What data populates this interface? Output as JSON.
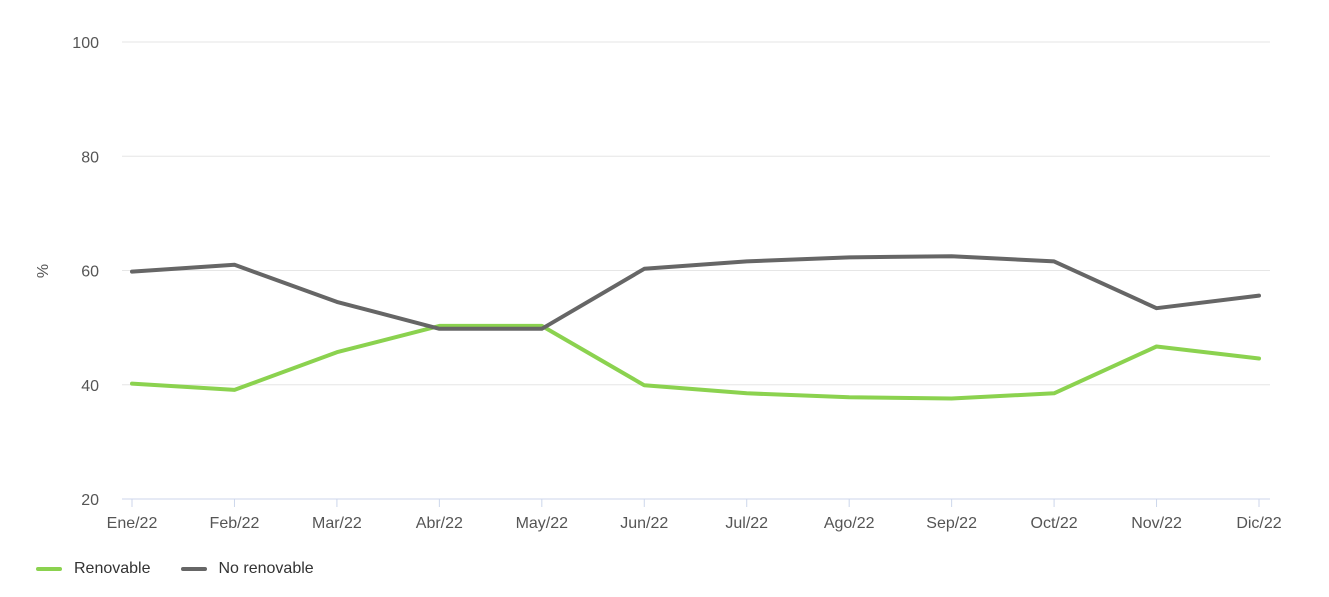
{
  "chart_data": {
    "type": "line",
    "categories": [
      "Ene/22",
      "Feb/22",
      "Mar/22",
      "Abr/22",
      "May/22",
      "Jun/22",
      "Jul/22",
      "Ago/22",
      "Sep/22",
      "Oct/22",
      "Nov/22",
      "Dic/22"
    ],
    "series": [
      {
        "name": "Renovable",
        "color": "#8bd24f",
        "values": [
          40.2,
          39.1,
          45.7,
          50.3,
          50.3,
          39.9,
          38.5,
          37.8,
          37.6,
          38.5,
          46.7,
          44.6
        ]
      },
      {
        "name": "No renovable",
        "color": "#666666",
        "values": [
          59.8,
          61.0,
          54.5,
          49.8,
          49.8,
          60.3,
          61.6,
          62.3,
          62.5,
          61.6,
          53.4,
          55.6
        ]
      }
    ],
    "title": "",
    "xlabel": "",
    "ylabel": "%",
    "ylim": [
      20,
      100
    ],
    "yticks": [
      20,
      40,
      60,
      80,
      100
    ],
    "grid": true,
    "legend_position": "bottom-left"
  },
  "legend": {
    "items": [
      {
        "label": "Renovable",
        "color": "#8bd24f"
      },
      {
        "label": "No renovable",
        "color": "#666666"
      }
    ]
  }
}
